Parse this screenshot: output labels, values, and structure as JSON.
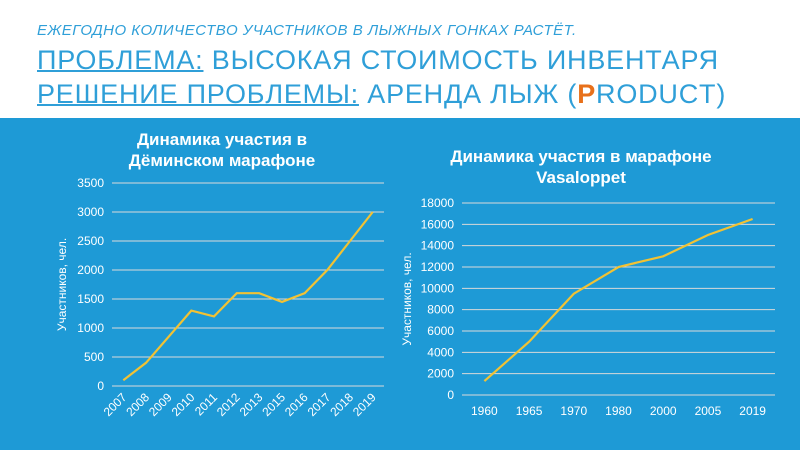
{
  "header": {
    "subtitle": "ЕЖЕГОДНО КОЛИЧЕСТВО УЧАСТНИКОВ В ЛЫЖНЫХ ГОНКАХ РАСТЁТ.",
    "problem_label": "ПРОБЛЕМА:",
    "problem_text": " ВЫСОКАЯ СТОИМОСТЬ ИНВЕНТАРЯ",
    "solution_label": "РЕШЕНИЕ ПРОБЛЕМЫ:",
    "solution_text": " АРЕНДА ЛЫЖ  (",
    "product_initial": "P",
    "product_rest": "RODUCT)"
  },
  "colors": {
    "band": "#1e9ad6",
    "heading": "#2f9fd8",
    "accent": "#e8701a",
    "line": "#f2c233"
  },
  "chart_data": [
    {
      "type": "line",
      "title_lines": [
        "Динамика участия в",
        "Дёминском марафоне"
      ],
      "ylabel": "Участников, чел.",
      "categories": [
        "2007",
        "2008",
        "2009",
        "2010",
        "2011",
        "2012",
        "2013",
        "2015",
        "2016",
        "2017",
        "2018",
        "2019"
      ],
      "values": [
        100,
        400,
        850,
        1300,
        1200,
        1600,
        1600,
        1450,
        1600,
        2000,
        2500,
        3000
      ],
      "ylim": [
        0,
        3500
      ],
      "yticks": [
        0,
        500,
        1000,
        1500,
        2000,
        2500,
        3000,
        3500
      ],
      "grid": true
    },
    {
      "type": "line",
      "title_lines": [
        "Динамика участия в марафоне",
        "Vasaloppet"
      ],
      "ylabel": "Участников, чел.",
      "categories": [
        "1960",
        "1965",
        "1970",
        "1980",
        "2000",
        "2005",
        "2019"
      ],
      "values": [
        1300,
        5000,
        9500,
        12000,
        13000,
        15000,
        16500
      ],
      "ylim": [
        0,
        18000
      ],
      "yticks": [
        0,
        2000,
        4000,
        6000,
        8000,
        10000,
        12000,
        14000,
        16000,
        18000
      ],
      "grid": true
    }
  ]
}
